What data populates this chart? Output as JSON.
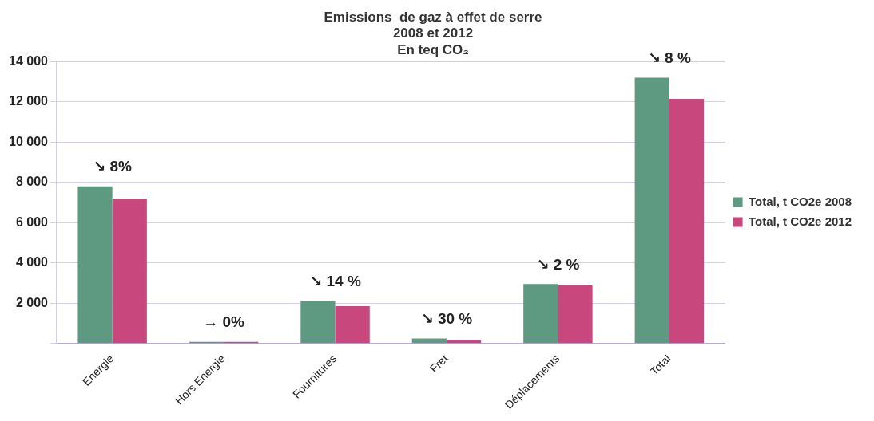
{
  "chart_data": {
    "type": "bar",
    "title": [
      "Emissions  de gaz à effet de serre",
      "2008 et 2012",
      "En teq CO₂"
    ],
    "categories": [
      "Energie",
      "Hors Energie",
      "Fournitures",
      "Fret",
      "Déplacements",
      "Total"
    ],
    "series": [
      {
        "name": "Total, t CO2e 2008",
        "color": "#5e9a82",
        "values": [
          7800,
          80,
          2100,
          250,
          2950,
          13200
        ]
      },
      {
        "name": "Total, t CO2e 2012",
        "color": "#c8487e",
        "values": [
          7200,
          80,
          1850,
          180,
          2880,
          12150
        ]
      }
    ],
    "ylim": [
      0,
      14000
    ],
    "yticks": [
      {
        "value": 0,
        "label": null
      },
      {
        "value": 2000,
        "label": "2 000"
      },
      {
        "value": 4000,
        "label": "4 000"
      },
      {
        "value": 6000,
        "label": "6 000"
      },
      {
        "value": 8000,
        "label": "8 000"
      },
      {
        "value": 10000,
        "label": "10 000"
      },
      {
        "value": 12000,
        "label": "12 000"
      },
      {
        "value": 14000,
        "label": "14 000"
      }
    ],
    "grid": "y",
    "legend": "right",
    "annotations": [
      {
        "text": "↘ 8%",
        "x": "Energie",
        "y": 7800
      },
      {
        "text": "→ 0%",
        "x": "Hors Energie",
        "y": 80
      },
      {
        "text": "↘ 14 %",
        "x": "Fournitures",
        "y": 2100
      },
      {
        "text": "↘ 30 %",
        "x": "Fret",
        "y": 250
      },
      {
        "text": "↘ 2 %",
        "x": "Déplacements",
        "y": 2950
      },
      {
        "text": "↘ 8 %",
        "x": "Total",
        "y": 13200
      }
    ]
  }
}
